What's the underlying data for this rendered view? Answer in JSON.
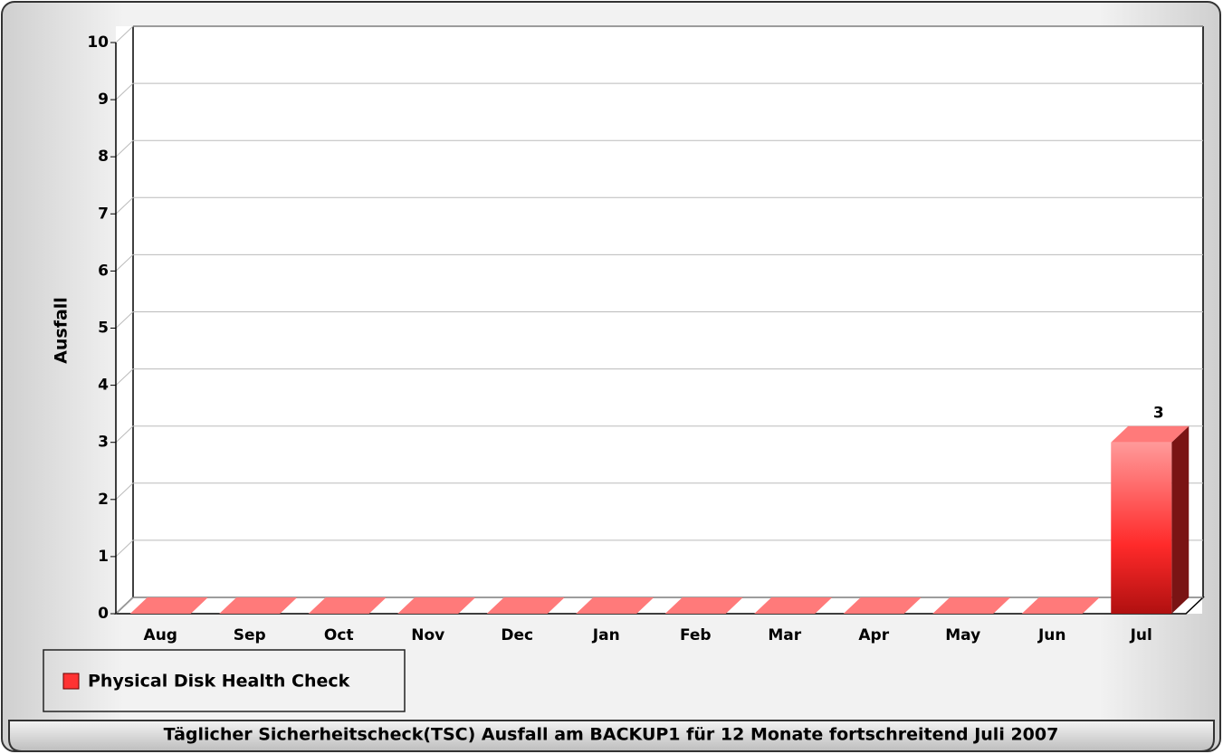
{
  "chart_data": {
    "type": "bar3d",
    "title": "Täglicher Sicherheitscheck(TSC) Ausfall am BACKUP1 für 12 Monate fortschreitend Juli 2007",
    "y_label": "Ausfall",
    "categories": [
      "Aug",
      "Sep",
      "Oct",
      "Nov",
      "Dec",
      "Jan",
      "Feb",
      "Mar",
      "Apr",
      "May",
      "Jun",
      "Jul"
    ],
    "series": [
      {
        "name": "Physical Disk Health Check",
        "color": "#ff3333",
        "values": [
          0,
          0,
          0,
          0,
          0,
          0,
          0,
          0,
          0,
          0,
          0,
          3
        ]
      }
    ],
    "ylim": [
      0,
      10
    ],
    "yticks": [
      0,
      1,
      2,
      3,
      4,
      5,
      6,
      7,
      8,
      9,
      10
    ],
    "grid": true,
    "legend": "bottom-left"
  }
}
